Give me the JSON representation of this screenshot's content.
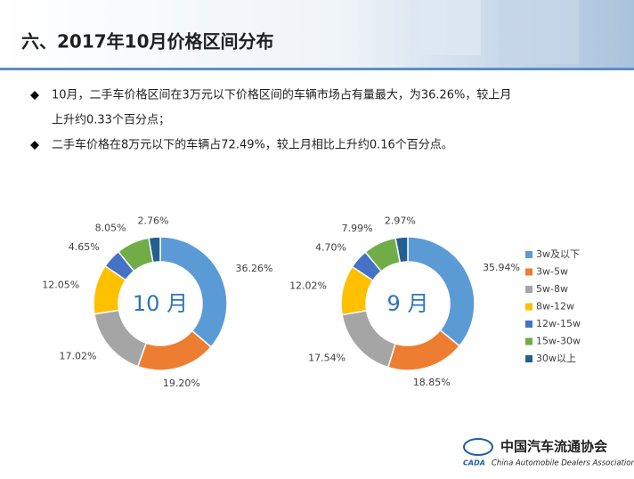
{
  "title": "六、2017年10月价格区间分布",
  "bullets": [
    "10月，二手车价格区间在3万元以下价格区间的车辆市场占有量最大，为36.26%，较上月",
    "上升约0.33个百分点；",
    "二手车价格在8万元以下的车辆占72.49%，较上月相比上升约0.16个百分点。"
  ],
  "logo": {
    "name": "中国汽车流通协会",
    "english": "China Automobile Dealers Association",
    "abbr": "CADA"
  },
  "chart_data": [
    {
      "type": "pie",
      "center_label": "10 月",
      "categories": [
        "3w及以下",
        "3w-5w",
        "5w-8w",
        "8w-12w",
        "12w-15w",
        "15w-30w",
        "30w以上"
      ],
      "colors": [
        "#5b9bd5",
        "#ed7d31",
        "#a5a5a5",
        "#ffc000",
        "#4472c4",
        "#70ad47",
        "#255e91"
      ],
      "values": [
        36.26,
        19.2,
        17.02,
        12.05,
        4.65,
        8.05,
        2.76
      ],
      "value_labels": [
        "36.26%",
        "19.20%",
        "17.02%",
        "12.05%",
        "4.65%",
        "8.05%",
        "2.76%"
      ]
    },
    {
      "type": "pie",
      "center_label": "9 月",
      "categories": [
        "3w及以下",
        "3w-5w",
        "5w-8w",
        "8w-12w",
        "12w-15w",
        "15w-30w",
        "30w以上"
      ],
      "colors": [
        "#5b9bd5",
        "#ed7d31",
        "#a5a5a5",
        "#ffc000",
        "#4472c4",
        "#70ad47",
        "#255e91"
      ],
      "values": [
        35.94,
        18.85,
        17.54,
        12.02,
        4.7,
        7.99,
        2.97
      ],
      "value_labels": [
        "35.94%",
        "18.85%",
        "17.54%",
        "12.02%",
        "4.70%",
        "7.99%",
        "2.97%"
      ],
      "legend": true
    }
  ]
}
